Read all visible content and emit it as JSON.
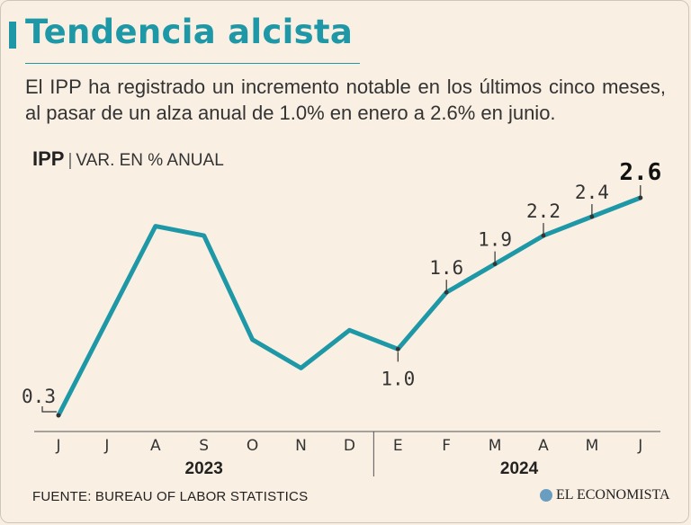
{
  "header": {
    "title": "Tendencia alcista",
    "subtitle": "El IPP ha registrado un incremento notable en los últimos cinco meses, al pasar de un alza anual de 1.0% en enero a 2.6% en junio."
  },
  "series_label": {
    "name": "IPP",
    "unit": "VAR. EN % ANUAL"
  },
  "chart_data": {
    "type": "line",
    "title": "IPP",
    "ylabel": "VAR. EN % ANUAL",
    "xlabel": "",
    "categories": [
      "J",
      "J",
      "A",
      "S",
      "O",
      "N",
      "D",
      "E",
      "F",
      "M",
      "A",
      "M",
      "J"
    ],
    "years": [
      {
        "label": "2023",
        "from": 0,
        "to": 6
      },
      {
        "label": "2024",
        "from": 7,
        "to": 12
      }
    ],
    "series": [
      {
        "name": "IPP",
        "values": [
          0.3,
          1.3,
          2.3,
          2.2,
          1.1,
          0.8,
          1.2,
          1.0,
          1.6,
          1.9,
          2.2,
          2.4,
          2.6
        ]
      }
    ],
    "labeled_points": [
      {
        "index": 0,
        "label": "0.3"
      },
      {
        "index": 7,
        "label": "1.0"
      },
      {
        "index": 8,
        "label": "1.6"
      },
      {
        "index": 9,
        "label": "1.9"
      },
      {
        "index": 10,
        "label": "2.2"
      },
      {
        "index": 11,
        "label": "2.4"
      },
      {
        "index": 12,
        "label": "2.6"
      }
    ],
    "ylim": [
      0.3,
      2.6
    ],
    "grid": false,
    "colors": {
      "line": "#1e98a6",
      "text": "#333333",
      "axis": "#555555"
    }
  },
  "footer": {
    "source": "FUENTE: BUREAU OF LABOR STATISTICS",
    "brand": "EL ECONOMISTA"
  }
}
